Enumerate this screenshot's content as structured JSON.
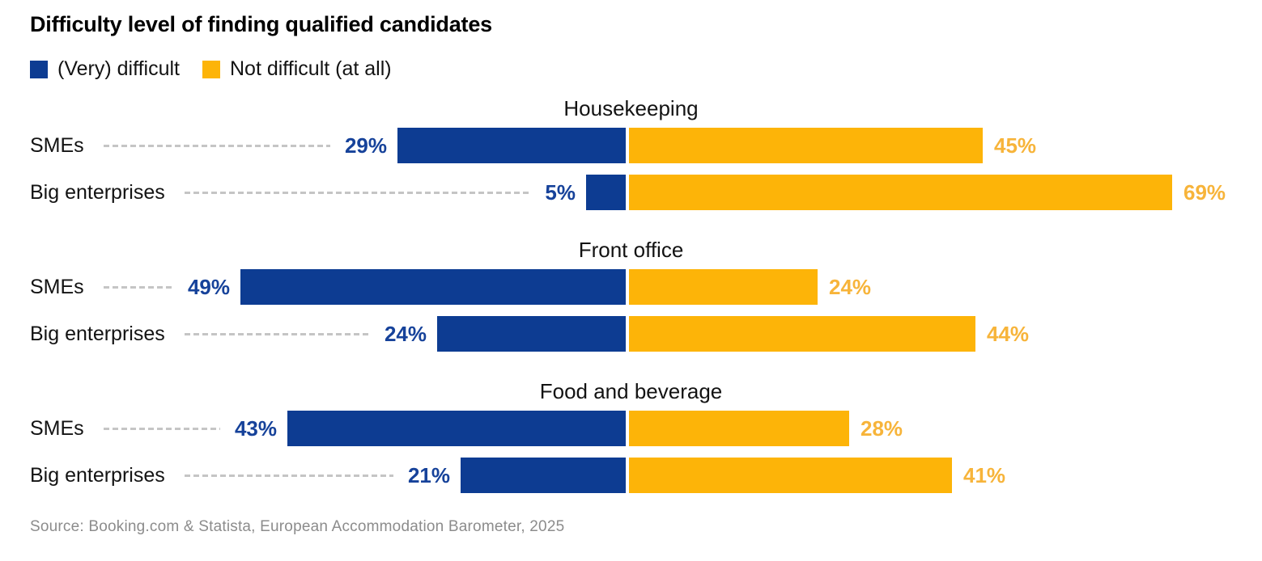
{
  "title": "Difficulty level of finding qualified candidates",
  "source": "Source: Booking.com & Statista, European Accommodation Barometer, 2025",
  "colors": {
    "difficult_bar": "#0d3c92",
    "difficult_label": "#16429a",
    "not_difficult_bar": "#fdb408",
    "not_difficult_label": "#f7b43a",
    "leader_line": "#c5c5c5",
    "source_text": "#8c8c8c",
    "title_text": "#000000"
  },
  "chart_data": {
    "type": "bar",
    "variant": "horizontal-diverging-grouped",
    "title": "Difficulty level of finding qualified candidates",
    "unit": "%",
    "value_labels_shown": true,
    "axes_shown": false,
    "legend_position": "top-left",
    "legend": [
      {
        "name": "(Very) difficult",
        "color": "#0d3c92",
        "direction": "left"
      },
      {
        "name": "Not difficult (at all)",
        "color": "#fdb408",
        "direction": "right"
      }
    ],
    "groups": [
      {
        "label": "Housekeeping",
        "rows": [
          {
            "label": "SMEs",
            "difficult": 29,
            "not_difficult": 45
          },
          {
            "label": "Big enterprises",
            "difficult": 5,
            "not_difficult": 69
          }
        ]
      },
      {
        "label": "Front office",
        "rows": [
          {
            "label": "SMEs",
            "difficult": 49,
            "not_difficult": 24
          },
          {
            "label": "Big enterprises",
            "difficult": 24,
            "not_difficult": 44
          }
        ]
      },
      {
        "label": "Food and beverage",
        "rows": [
          {
            "label": "SMEs",
            "difficult": 43,
            "not_difficult": 28
          },
          {
            "label": "Big enterprises",
            "difficult": 21,
            "not_difficult": 41
          }
        ]
      }
    ],
    "source": "Source: Booking.com & Statista, European Accommodation Barometer, 2025"
  }
}
